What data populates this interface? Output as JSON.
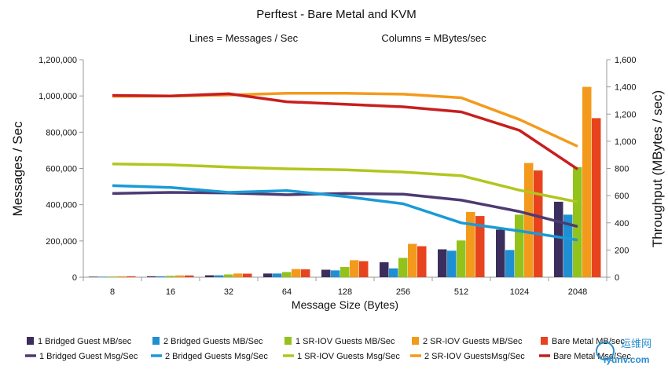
{
  "chart_data": {
    "type": "bar",
    "title": "Perftest - Bare Metal and KVM",
    "subtitle_lines": "Lines = Messages / Sec",
    "subtitle_columns": "Columns = MBytes/sec",
    "xlabel": "Message Size (Bytes)",
    "ylabel": "Messages / Sec",
    "y2label": "Throughput (MBytes / sec)",
    "categories": [
      "8",
      "16",
      "32",
      "64",
      "128",
      "256",
      "512",
      "1024",
      "2048"
    ],
    "ylim": [
      0,
      1200000
    ],
    "y2lim": [
      0,
      1600
    ],
    "y_ticks": [
      0,
      200000,
      400000,
      600000,
      800000,
      1000000,
      1200000
    ],
    "y_tick_labels": [
      "0",
      "200,000",
      "400,000",
      "600,000",
      "800,000",
      "1,000,000",
      "1,200,000"
    ],
    "y2_ticks": [
      0,
      200,
      400,
      600,
      800,
      1000,
      1200,
      1400,
      1600
    ],
    "y2_tick_labels": [
      "0",
      "200",
      "400",
      "600",
      "800",
      "1,000",
      "1,200",
      "1,400",
      "1,600"
    ],
    "bar_series": [
      {
        "name": "1 Bridged Guest MB/sec",
        "color": "#3c2e5c",
        "values": [
          4,
          7,
          14,
          27,
          55,
          110,
          205,
          350,
          555
        ]
      },
      {
        "name": "2 Bridged Guests MB/Sec",
        "color": "#1f8fd4",
        "values": [
          4,
          7,
          14,
          27,
          50,
          65,
          195,
          200,
          460
        ]
      },
      {
        "name": "1 SR-IOV Guests MB/Sec",
        "color": "#93c21a",
        "values": [
          5,
          10,
          20,
          38,
          75,
          142,
          270,
          460,
          810
        ]
      },
      {
        "name": "2 SR-IOV Guests MB/Sec",
        "color": "#f39a1c",
        "values": [
          7,
          13,
          27,
          60,
          125,
          245,
          480,
          840,
          1400
        ]
      },
      {
        "name": "Bare Metal MB/sec",
        "color": "#e8431f",
        "values": [
          7,
          13,
          26,
          58,
          118,
          228,
          450,
          785,
          1170
        ]
      }
    ],
    "line_series": [
      {
        "name": "1 Bridged Guest Msg/Sec",
        "color": "#4e3a73",
        "values": [
          462000,
          468000,
          465000,
          455000,
          462000,
          458000,
          425000,
          362000,
          280000
        ]
      },
      {
        "name": "2 Bridged Guests Msg/Sec",
        "color": "#1a9ad6",
        "values": [
          505000,
          495000,
          468000,
          478000,
          445000,
          405000,
          300000,
          255000,
          205000
        ]
      },
      {
        "name": "1 SR-IOV Guests Msg/Sec",
        "color": "#b2c61e",
        "values": [
          625000,
          620000,
          608000,
          598000,
          592000,
          580000,
          560000,
          480000,
          415000
        ]
      },
      {
        "name": "2 SR-IOV GuestsMsg/Sec",
        "color": "#f39a1c",
        "values": [
          998000,
          1000000,
          1005000,
          1015000,
          1015000,
          1010000,
          990000,
          870000,
          722000
        ]
      },
      {
        "name": "Bare Metal Msg/Sec",
        "color": "#c81e1e",
        "values": [
          1003000,
          1000000,
          1012000,
          968000,
          954000,
          940000,
          912000,
          810000,
          596000
        ]
      }
    ],
    "legend_position": "bottom",
    "grid": false
  },
  "watermark": {
    "line1": "运维网",
    "line2": "iyunv.com"
  }
}
